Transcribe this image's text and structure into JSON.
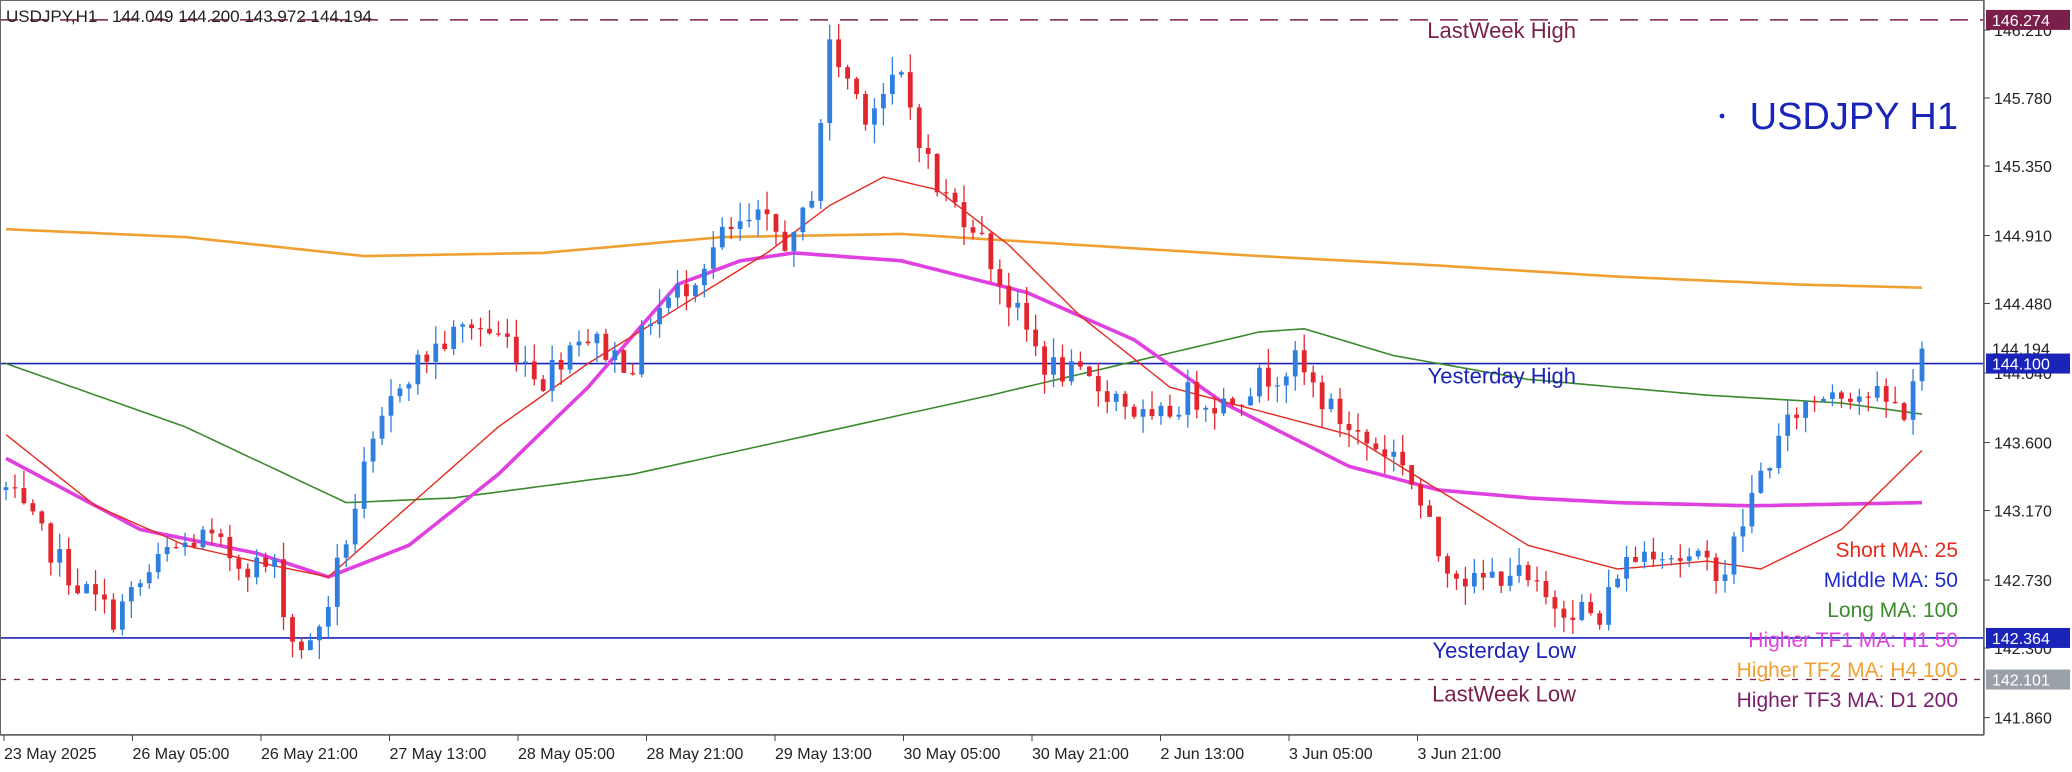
{
  "header": {
    "symbol_tf": "USDJPY,H1",
    "ohlc": "144.049 144.200 143.972 144.194"
  },
  "watermark": "USDJPY H1",
  "colors": {
    "bull": "#2f7fe0",
    "bear": "#e3262d",
    "short_ma": "#e52a1f",
    "middle_ma": "#1f2bd1",
    "long_ma": "#3c8a2e",
    "htf1": "#e040e0",
    "htf2": "#f0a030",
    "htf3": "#7a1f6e",
    "level_blue": "#1a24b8",
    "level_purple": "#7a1f4a",
    "tag_blue": "#1a24b8",
    "tag_purple": "#7a1f4a",
    "tag_gray": "#9aa0a8",
    "tag_black": "#222222"
  },
  "levels": [
    {
      "label": "LastWeek High",
      "price": 146.274,
      "tag": "146.274"
    },
    {
      "label": "Yesterday High",
      "price": 144.1,
      "tag": "144.100"
    },
    {
      "label": "Yesterday Low",
      "price": 142.364,
      "tag": "142.364"
    },
    {
      "label": "LastWeek Low",
      "price": 142.101,
      "tag": "142.101"
    }
  ],
  "current_price_tag": "144.194",
  "legend": [
    {
      "text": "Short MA: 25",
      "color_key": "short_ma"
    },
    {
      "text": "Middle MA: 50",
      "color_key": "middle_ma"
    },
    {
      "text": "Long MA: 100",
      "color_key": "long_ma"
    },
    {
      "text": "Higher TF1 MA: H1 50",
      "color_key": "htf1"
    },
    {
      "text": "Higher TF2 MA: H4 100",
      "color_key": "htf2"
    },
    {
      "text": "Higher TF3 MA: D1 200",
      "color_key": "htf3"
    }
  ],
  "chart_data": {
    "type": "candlestick",
    "symbol": "USDJPY",
    "timeframe": "H1",
    "ylim": [
      141.75,
      146.4
    ],
    "y_ticks": [
      146.21,
      145.78,
      145.35,
      144.91,
      144.48,
      144.04,
      143.6,
      143.17,
      142.73,
      142.3,
      141.86
    ],
    "x_labels": [
      "23 May 2025",
      "26 May 05:00",
      "26 May 21:00",
      "27 May 13:00",
      "28 May 05:00",
      "28 May 21:00",
      "29 May 13:00",
      "30 May 05:00",
      "30 May 21:00",
      "2 Jun 13:00",
      "3 Jun 05:00",
      "3 Jun 21:00"
    ],
    "candle_anchors": [
      [
        0,
        143.3
      ],
      [
        8,
        142.7
      ],
      [
        12,
        142.5
      ],
      [
        18,
        142.9
      ],
      [
        22,
        143.0
      ],
      [
        26,
        142.85
      ],
      [
        30,
        142.8
      ],
      [
        32,
        142.35
      ],
      [
        34,
        142.3
      ],
      [
        36,
        142.6
      ],
      [
        40,
        143.4
      ],
      [
        44,
        144.0
      ],
      [
        48,
        144.2
      ],
      [
        52,
        144.35
      ],
      [
        56,
        144.25
      ],
      [
        60,
        144.0
      ],
      [
        64,
        144.3
      ],
      [
        68,
        144.15
      ],
      [
        70,
        144.1
      ],
      [
        72,
        144.4
      ],
      [
        76,
        144.6
      ],
      [
        80,
        144.9
      ],
      [
        84,
        145.0
      ],
      [
        88,
        144.85
      ],
      [
        90,
        145.2
      ],
      [
        92,
        146.1
      ],
      [
        96,
        145.7
      ],
      [
        100,
        145.9
      ],
      [
        104,
        145.2
      ],
      [
        108,
        145.0
      ],
      [
        112,
        144.5
      ],
      [
        116,
        144.1
      ],
      [
        120,
        144.0
      ],
      [
        124,
        143.9
      ],
      [
        128,
        143.7
      ],
      [
        132,
        143.9
      ],
      [
        136,
        143.85
      ],
      [
        140,
        144.0
      ],
      [
        144,
        144.1
      ],
      [
        148,
        143.8
      ],
      [
        152,
        143.6
      ],
      [
        156,
        143.5
      ],
      [
        160,
        142.9
      ],
      [
        164,
        142.7
      ],
      [
        168,
        142.8
      ],
      [
        172,
        142.6
      ],
      [
        176,
        142.55
      ],
      [
        178,
        142.45
      ],
      [
        180,
        142.8
      ],
      [
        184,
        142.95
      ],
      [
        188,
        142.85
      ],
      [
        192,
        142.8
      ],
      [
        196,
        143.4
      ],
      [
        200,
        143.8
      ],
      [
        204,
        143.95
      ],
      [
        208,
        143.9
      ],
      [
        212,
        143.8
      ],
      [
        214,
        144.19
      ]
    ],
    "ma_short_25": [
      [
        0,
        143.65
      ],
      [
        10,
        143.2
      ],
      [
        20,
        142.95
      ],
      [
        30,
        142.82
      ],
      [
        36,
        142.75
      ],
      [
        45,
        143.2
      ],
      [
        55,
        143.7
      ],
      [
        65,
        144.1
      ],
      [
        75,
        144.45
      ],
      [
        85,
        144.8
      ],
      [
        92,
        145.1
      ],
      [
        98,
        145.28
      ],
      [
        104,
        145.2
      ],
      [
        112,
        144.85
      ],
      [
        120,
        144.4
      ],
      [
        130,
        143.95
      ],
      [
        140,
        143.8
      ],
      [
        150,
        143.65
      ],
      [
        160,
        143.3
      ],
      [
        170,
        142.95
      ],
      [
        180,
        142.8
      ],
      [
        190,
        142.85
      ],
      [
        196,
        142.8
      ],
      [
        205,
        143.05
      ],
      [
        214,
        143.55
      ]
    ],
    "ma_middle_50": [
      [
        0,
        144.12
      ],
      [
        214,
        144.12
      ]
    ],
    "ma_long_100": [
      [
        0,
        144.1
      ],
      [
        20,
        143.7
      ],
      [
        38,
        143.22
      ],
      [
        50,
        143.25
      ],
      [
        70,
        143.4
      ],
      [
        90,
        143.65
      ],
      [
        110,
        143.9
      ],
      [
        125,
        144.1
      ],
      [
        140,
        144.3
      ],
      [
        145,
        144.32
      ],
      [
        155,
        144.15
      ],
      [
        170,
        144.0
      ],
      [
        190,
        143.9
      ],
      [
        205,
        143.85
      ],
      [
        214,
        143.78
      ]
    ],
    "htf1_h1_50": [
      [
        0,
        143.5
      ],
      [
        15,
        143.05
      ],
      [
        28,
        142.9
      ],
      [
        36,
        142.75
      ],
      [
        45,
        142.95
      ],
      [
        55,
        143.4
      ],
      [
        65,
        143.95
      ],
      [
        75,
        144.6
      ],
      [
        82,
        144.75
      ],
      [
        88,
        144.8
      ],
      [
        100,
        144.75
      ],
      [
        114,
        144.55
      ],
      [
        126,
        144.25
      ],
      [
        136,
        143.85
      ],
      [
        150,
        143.45
      ],
      [
        160,
        143.3
      ],
      [
        170,
        143.25
      ],
      [
        180,
        143.22
      ],
      [
        195,
        143.2
      ],
      [
        214,
        143.22
      ]
    ],
    "htf2_h4_100": [
      [
        0,
        144.95
      ],
      [
        20,
        144.9
      ],
      [
        40,
        144.78
      ],
      [
        60,
        144.8
      ],
      [
        80,
        144.9
      ],
      [
        100,
        144.92
      ],
      [
        120,
        144.85
      ],
      [
        140,
        144.78
      ],
      [
        160,
        144.72
      ],
      [
        180,
        144.65
      ],
      [
        200,
        144.6
      ],
      [
        214,
        144.58
      ]
    ]
  }
}
